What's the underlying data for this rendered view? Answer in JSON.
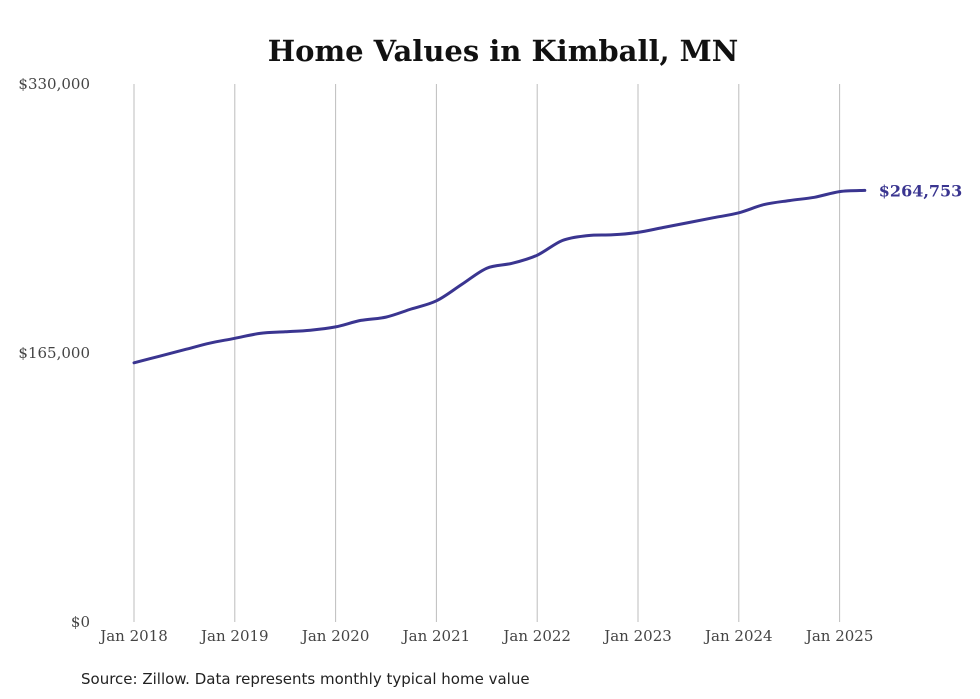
{
  "chart_data": {
    "type": "line",
    "title": "Home Values in Kimball, MN",
    "source": "Source: Zillow. Data represents monthly typical home value",
    "ylim": [
      0,
      330000
    ],
    "y_ticks": [
      0,
      165000,
      330000
    ],
    "y_tick_labels": [
      "$0",
      "$165,000",
      "$330,000"
    ],
    "x_ticks": [
      "2018-01",
      "2019-01",
      "2020-01",
      "2021-01",
      "2022-01",
      "2023-01",
      "2024-01",
      "2025-01"
    ],
    "x_tick_labels": [
      "Jan 2018",
      "Jan 2019",
      "Jan 2020",
      "Jan 2021",
      "Jan 2022",
      "Jan 2023",
      "Jan 2024",
      "Jan 2025"
    ],
    "grid_x": true,
    "grid_y": false,
    "line_color": "#3a3590",
    "end_label": "$264,753",
    "series": [
      {
        "x": [
          "2018-01",
          "2018-04",
          "2018-07",
          "2018-10",
          "2019-01",
          "2019-04",
          "2019-07",
          "2019-10",
          "2020-01",
          "2020-04",
          "2020-07",
          "2020-10",
          "2021-01",
          "2021-04",
          "2021-07",
          "2021-10",
          "2022-01",
          "2022-04",
          "2022-07",
          "2022-10",
          "2023-01",
          "2023-04",
          "2023-07",
          "2023-10",
          "2024-01",
          "2024-04",
          "2024-07",
          "2024-10",
          "2025-01",
          "2025-04"
        ],
        "values": [
          159000,
          163000,
          167000,
          171000,
          174000,
          177000,
          178000,
          179000,
          181000,
          185000,
          187000,
          192000,
          197000,
          207000,
          217000,
          220000,
          225000,
          234000,
          237000,
          237500,
          239000,
          242000,
          245000,
          248000,
          251000,
          256000,
          258500,
          260500,
          264000,
          264753
        ]
      }
    ]
  }
}
